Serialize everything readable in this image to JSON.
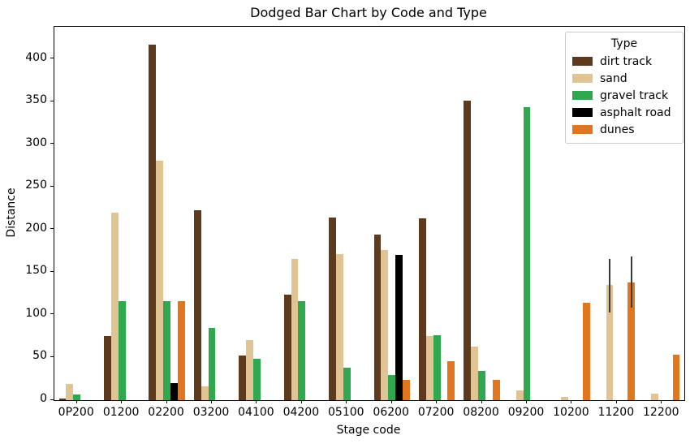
{
  "figure": {
    "title": "Dodged Bar Chart by Code and Type",
    "xlabel": "Stage code",
    "ylabel": "Distance",
    "legend_title": "Type"
  },
  "chart_data": {
    "type": "bar",
    "title": "Dodged Bar Chart by Code and Type",
    "xlabel": "Stage code",
    "ylabel": "Distance",
    "grid": false,
    "legend_title": "Type",
    "legend_position": "upper right",
    "ylim": [
      0,
      438
    ],
    "yticks": [
      0,
      50,
      100,
      150,
      200,
      250,
      300,
      350,
      400
    ],
    "categories": [
      "0P200",
      "01200",
      "02200",
      "03200",
      "04100",
      "04200",
      "05100",
      "06200",
      "07200",
      "08200",
      "09200",
      "10200",
      "11200",
      "12200"
    ],
    "series": [
      {
        "name": "dirt track",
        "color": "#5D3A1E",
        "values": [
          2,
          75,
          417,
          223,
          52,
          124,
          214,
          194,
          213,
          351,
          null,
          null,
          null,
          null
        ]
      },
      {
        "name": "sand",
        "color": "#E0C494",
        "values": [
          19,
          220,
          281,
          16,
          70,
          166,
          171,
          176,
          75,
          63,
          11,
          4,
          135,
          8
        ],
        "errors": {
          "12": [
            103,
            166
          ]
        }
      },
      {
        "name": "gravel track",
        "color": "#2FA84F",
        "values": [
          7,
          116,
          116,
          85,
          49,
          116,
          38,
          30,
          76,
          34,
          344,
          null,
          null,
          null
        ]
      },
      {
        "name": "asphalt road",
        "color": "#000000",
        "values": [
          null,
          null,
          20,
          null,
          null,
          null,
          null,
          170,
          null,
          null,
          null,
          null,
          null,
          null
        ]
      },
      {
        "name": "dunes",
        "color": "#E2761E",
        "values": [
          null,
          null,
          116,
          null,
          null,
          null,
          null,
          24,
          46,
          24,
          null,
          114,
          138,
          53
        ],
        "errors": {
          "12": [
            109,
            169
          ]
        }
      }
    ],
    "error_bar_color": "#3a3a3a"
  }
}
